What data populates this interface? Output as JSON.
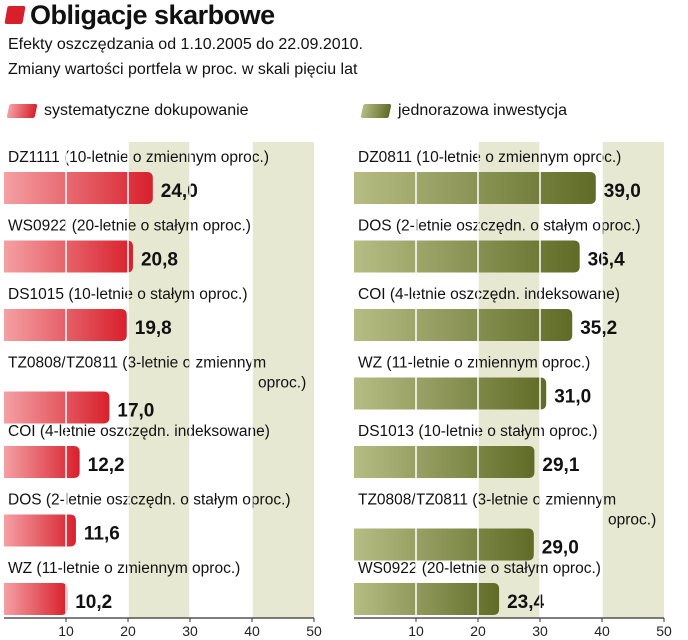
{
  "header": {
    "title": "Obligacje skarbowe",
    "subtitle_1": "Efekty oszczędzania od 1.10.2005 do 22.09.2010.",
    "subtitle_2": "Zmiany wartości portfela w proc. w skali pięciu lat"
  },
  "colors": {
    "accent": "#d8202c",
    "series_1": "#d8202c",
    "series_2": "#5f6b26",
    "bands": "#e7e8d2",
    "gridlines": "#ffffff"
  },
  "chart_data": [
    {
      "type": "bar",
      "orientation": "horizontal",
      "series_name": "systematyczne dokupowanie",
      "categories": [
        "DZ1111 (10-letnie o zmiennym oproc.)",
        "WS0922 (20-letnie o stałym oproc.)",
        "DS1015 (10-letnie o stałym oproc.)",
        "TZ0808/TZ0811 (3-letnie o zmiennym oproc.)",
        "COI (4-letnie oszczędn. indeksowane)",
        "DOS (2-letnie oszczędn. o stałym oproc.)",
        "WZ (11-letnie o zmiennym oproc.)"
      ],
      "category_lines": [
        [
          "DZ1111 (10-letnie o zmiennym oproc.)"
        ],
        [
          "WS0922 (20-letnie o stałym oproc.)"
        ],
        [
          "DS1015 (10-letnie o stałym oproc.)"
        ],
        [
          "TZ0808/TZ0811 (3-letnie o zmiennym",
          "oproc.)"
        ],
        [
          "COI (4-letnie oszczędn. indeksowane)"
        ],
        [
          "DOS (2-letnie oszczędn. o stałym oproc.)"
        ],
        [
          "WZ (11-letnie o zmiennym oproc.)"
        ]
      ],
      "values": [
        24.0,
        20.8,
        19.8,
        17.0,
        12.2,
        11.6,
        10.2
      ],
      "value_labels": [
        "24,0",
        "20,8",
        "19,8",
        "17,0",
        "12,2",
        "11,6",
        "10,2"
      ],
      "x_ticks": [
        "10",
        "20",
        "30",
        "40",
        "50"
      ],
      "xlim": [
        0,
        50
      ],
      "grid": true
    },
    {
      "type": "bar",
      "orientation": "horizontal",
      "series_name": "jednorazowa inwestycja",
      "categories": [
        "DZ0811 (10-letnie o zmiennym oproc.)",
        "DOS (2-letnie oszczędn. o stałym oproc.)",
        "COI (4-letnie oszczędn. indeksowane)",
        "WZ (11-letnie  o zmiennym oproc.)",
        "DS1013 (10-letnie o stałym oproc.)",
        "TZ0808/TZ0811 (3-letnie o zmiennym oproc.)",
        "WS0922 (20-letnie o stałym oproc.)"
      ],
      "category_lines": [
        [
          "DZ0811 (10-letnie o zmiennym oproc.)"
        ],
        [
          "DOS (2-letnie oszczędn. o stałym oproc.)"
        ],
        [
          "COI (4-letnie oszczędn. indeksowane)"
        ],
        [
          "WZ (11-letnie  o zmiennym oproc.)"
        ],
        [
          "DS1013 (10-letnie o stałym oproc.)"
        ],
        [
          "TZ0808/TZ0811 (3-letnie o zmiennym",
          "oproc.)"
        ],
        [
          "WS0922 (20-letnie o stałym oproc.)"
        ]
      ],
      "values": [
        39.0,
        36.4,
        35.2,
        31.0,
        29.1,
        29.0,
        23.4
      ],
      "value_labels": [
        "39,0",
        "36,4",
        "35,2",
        "31,0",
        "29,1",
        "29,0",
        "23,4"
      ],
      "x_ticks": [
        "10",
        "20",
        "30",
        "40",
        "50"
      ],
      "xlim": [
        0,
        50
      ],
      "grid": true
    }
  ]
}
